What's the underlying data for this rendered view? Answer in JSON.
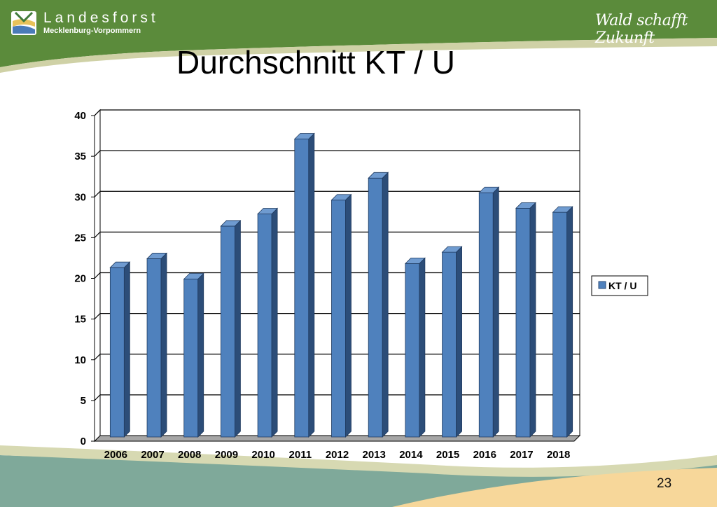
{
  "header": {
    "logo_line1": "Landesforst",
    "logo_line2": "Mecklenburg-Vorpommern",
    "slogan": "Wald schafft Zukunft",
    "bg_color": "#5a8a3a",
    "stripe_color": "#c8c89a"
  },
  "slide": {
    "title": "Durchschnitt KT / U",
    "page_number": "23"
  },
  "chart_data": {
    "type": "bar",
    "title": "",
    "xlabel": "",
    "ylabel": "",
    "categories": [
      "2006",
      "2007",
      "2008",
      "2009",
      "2010",
      "2011",
      "2012",
      "2013",
      "2014",
      "2015",
      "2016",
      "2017",
      "2018"
    ],
    "series": [
      {
        "name": "KT / U",
        "values": [
          20.8,
          21.9,
          19.4,
          25.9,
          27.4,
          36.6,
          29.1,
          31.8,
          21.3,
          22.7,
          30.0,
          28.1,
          27.6
        ]
      }
    ],
    "ylim": [
      0,
      40
    ],
    "yticks": [
      0,
      5,
      10,
      15,
      20,
      25,
      30,
      35,
      40
    ],
    "grid": true,
    "legend": "right",
    "bar_color": "#4f81bd",
    "bar_side_color": "#2c4d78",
    "bar_top_color": "#6f9bd0"
  }
}
